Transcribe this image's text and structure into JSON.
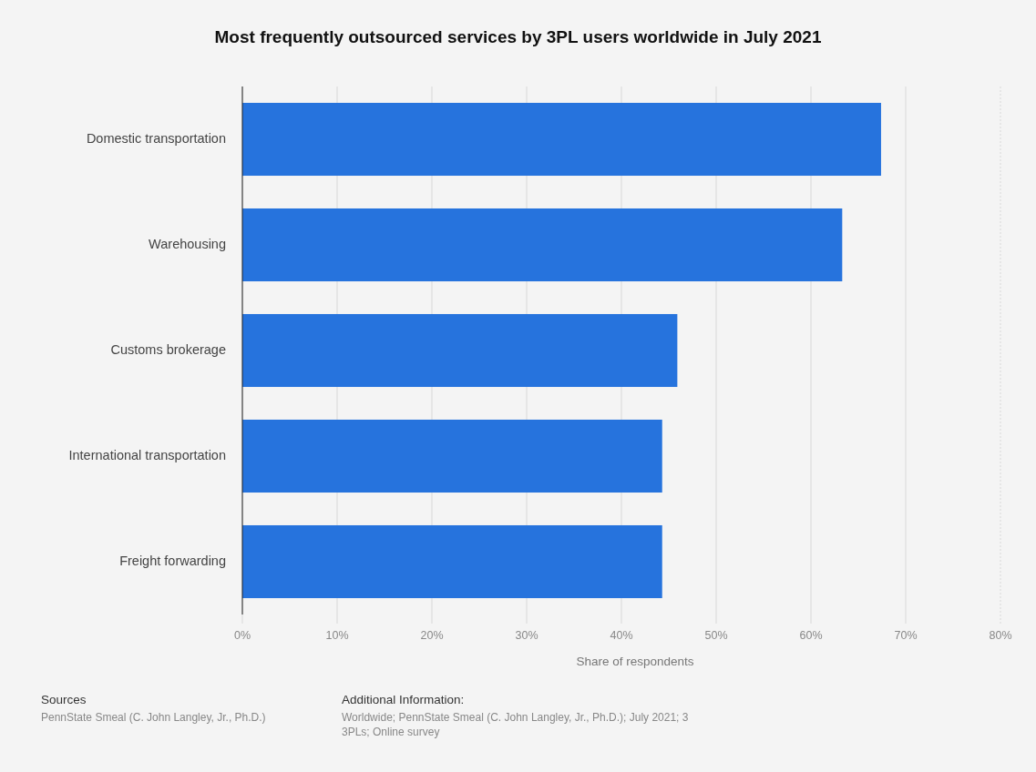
{
  "chart_data": {
    "type": "bar",
    "orientation": "horizontal",
    "title": "Most frequently outsourced services by 3PL users worldwide in July 2021",
    "categories": [
      "Domestic transportation",
      "Warehousing",
      "Customs brokerage",
      "International transportation",
      "Freight forwarding"
    ],
    "values": [
      67.4,
      63.3,
      45.9,
      44.3,
      44.3
    ],
    "color": "#2673dd",
    "xlabel": "Share of respondents",
    "xlim": [
      0,
      80
    ],
    "xticks": [
      {
        "value": 0,
        "label": "0%"
      },
      {
        "value": 10,
        "label": "10%"
      },
      {
        "value": 20,
        "label": "20%"
      },
      {
        "value": 30,
        "label": "30%"
      },
      {
        "value": 40,
        "label": "40%"
      },
      {
        "value": 50,
        "label": "50%"
      },
      {
        "value": 60,
        "label": "60%"
      },
      {
        "value": 70,
        "label": "70%"
      },
      {
        "value": 80,
        "label": "80%"
      }
    ],
    "grid": "x",
    "annotations": [
      "Sources",
      "PennState Smeal (C. John Langley, Jr., Ph.D.)",
      "Additional Information:",
      "Worldwide; PennState Smeal (C. John Langley, Jr., Ph.D.); July 2021; 3",
      "3PLs; Online survey"
    ]
  }
}
